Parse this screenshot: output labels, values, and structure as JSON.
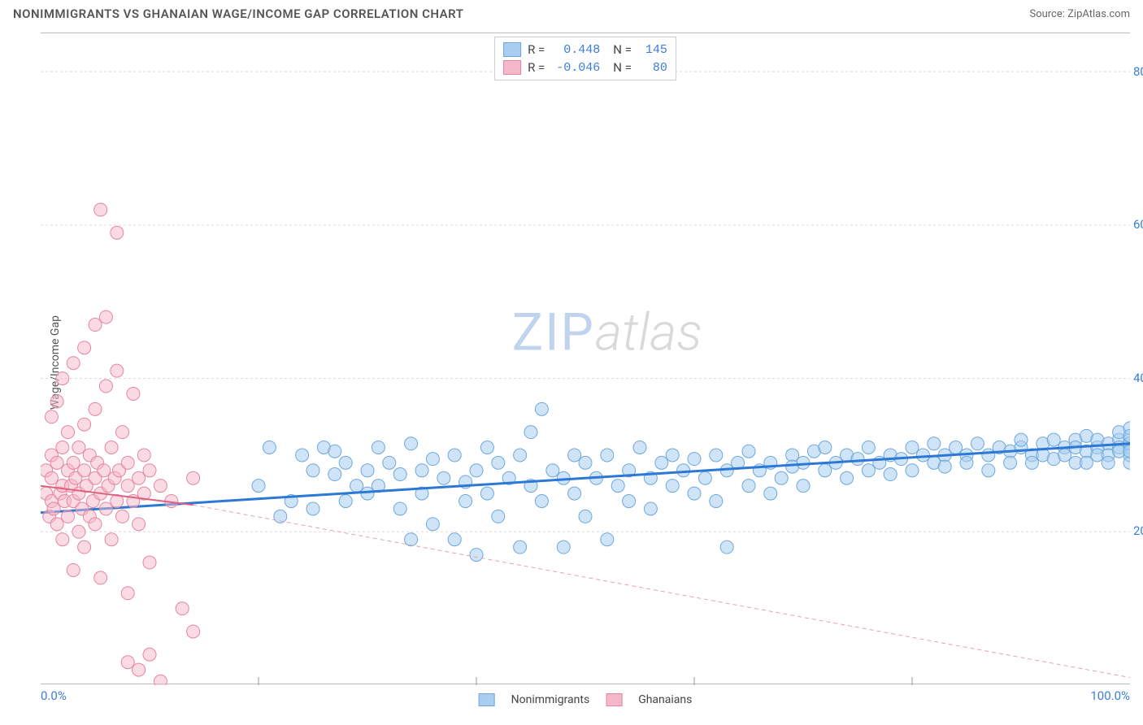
{
  "title": "NONIMMIGRANTS VS GHANAIAN WAGE/INCOME GAP CORRELATION CHART",
  "source": "Source: ZipAtlas.com",
  "ylabel": "Wage/Income Gap",
  "watermark": {
    "zip": "ZIP",
    "atlas": "atlas"
  },
  "chart": {
    "type": "scatter",
    "xlim": [
      0,
      100
    ],
    "ylim": [
      0,
      85
    ],
    "xtick_labels": [
      {
        "pos": 0,
        "label": "0.0%"
      },
      {
        "pos": 100,
        "label": "100.0%"
      }
    ],
    "xtick_marks": [
      20,
      40,
      60,
      80
    ],
    "ytick_labels": [
      {
        "pos": 20,
        "label": "20.0%"
      },
      {
        "pos": 40,
        "label": "40.0%"
      },
      {
        "pos": 60,
        "label": "60.0%"
      },
      {
        "pos": 80,
        "label": "80.0%"
      }
    ],
    "gridline_color": "#d9d9d9",
    "background": "#ffffff",
    "series": [
      {
        "name": "Nonimmigrants",
        "fill": "#a8cdf0",
        "stroke": "#6fa8dc",
        "marker_radius": 8,
        "fill_opacity": 0.55,
        "R": "0.448",
        "N": "145",
        "trend": {
          "color": "#2b78d6",
          "width": 3,
          "dash": "none",
          "x1": 0,
          "y1": 22.5,
          "x2": 100,
          "y2": 31.5
        },
        "points": [
          [
            20,
            26
          ],
          [
            21,
            31
          ],
          [
            22,
            22
          ],
          [
            23,
            24
          ],
          [
            24,
            30
          ],
          [
            25,
            28
          ],
          [
            25,
            23
          ],
          [
            26,
            31
          ],
          [
            27,
            27.5
          ],
          [
            27,
            30.5
          ],
          [
            28,
            29
          ],
          [
            28,
            24
          ],
          [
            29,
            26
          ],
          [
            30,
            28
          ],
          [
            30,
            25
          ],
          [
            31,
            31
          ],
          [
            31,
            26
          ],
          [
            32,
            29
          ],
          [
            33,
            23
          ],
          [
            33,
            27.5
          ],
          [
            34,
            31.5
          ],
          [
            34,
            19
          ],
          [
            35,
            28
          ],
          [
            35,
            25
          ],
          [
            36,
            21
          ],
          [
            36,
            29.5
          ],
          [
            37,
            27
          ],
          [
            38,
            19
          ],
          [
            38,
            30
          ],
          [
            39,
            24
          ],
          [
            39,
            26.5
          ],
          [
            40,
            17
          ],
          [
            40,
            28
          ],
          [
            41,
            25
          ],
          [
            41,
            31
          ],
          [
            42,
            29
          ],
          [
            42,
            22
          ],
          [
            43,
            27
          ],
          [
            44,
            18
          ],
          [
            44,
            30
          ],
          [
            45,
            33
          ],
          [
            45,
            26
          ],
          [
            46,
            36
          ],
          [
            46,
            24
          ],
          [
            47,
            28
          ],
          [
            48,
            18
          ],
          [
            48,
            27
          ],
          [
            49,
            30
          ],
          [
            49,
            25
          ],
          [
            50,
            29
          ],
          [
            50,
            22
          ],
          [
            51,
            27
          ],
          [
            52,
            19
          ],
          [
            52,
            30
          ],
          [
            53,
            26
          ],
          [
            54,
            28
          ],
          [
            54,
            24
          ],
          [
            55,
            31
          ],
          [
            56,
            27
          ],
          [
            56,
            23
          ],
          [
            57,
            29
          ],
          [
            58,
            26
          ],
          [
            58,
            30
          ],
          [
            59,
            28
          ],
          [
            60,
            25
          ],
          [
            60,
            29.5
          ],
          [
            61,
            27
          ],
          [
            62,
            30
          ],
          [
            62,
            24
          ],
          [
            63,
            28
          ],
          [
            63,
            18
          ],
          [
            64,
            29
          ],
          [
            65,
            26
          ],
          [
            65,
            30.5
          ],
          [
            66,
            28
          ],
          [
            67,
            29
          ],
          [
            67,
            25
          ],
          [
            68,
            27
          ],
          [
            69,
            30
          ],
          [
            69,
            28.5
          ],
          [
            70,
            26
          ],
          [
            70,
            29
          ],
          [
            71,
            30.5
          ],
          [
            72,
            28
          ],
          [
            72,
            31
          ],
          [
            73,
            29
          ],
          [
            74,
            27
          ],
          [
            74,
            30
          ],
          [
            75,
            29.5
          ],
          [
            76,
            28
          ],
          [
            76,
            31
          ],
          [
            77,
            29
          ],
          [
            78,
            30
          ],
          [
            78,
            27.5
          ],
          [
            79,
            29.5
          ],
          [
            80,
            31
          ],
          [
            80,
            28
          ],
          [
            81,
            30
          ],
          [
            82,
            29
          ],
          [
            82,
            31.5
          ],
          [
            83,
            30
          ],
          [
            83,
            28.5
          ],
          [
            84,
            31
          ],
          [
            85,
            30
          ],
          [
            85,
            29
          ],
          [
            86,
            31.5
          ],
          [
            87,
            30
          ],
          [
            87,
            28
          ],
          [
            88,
            31
          ],
          [
            89,
            30.5
          ],
          [
            89,
            29
          ],
          [
            90,
            31
          ],
          [
            90,
            32
          ],
          [
            91,
            30
          ],
          [
            91,
            29
          ],
          [
            92,
            31.5
          ],
          [
            92,
            30
          ],
          [
            93,
            32
          ],
          [
            93,
            29.5
          ],
          [
            94,
            31
          ],
          [
            94,
            30
          ],
          [
            95,
            32
          ],
          [
            95,
            29
          ],
          [
            95,
            31
          ],
          [
            96,
            30.5
          ],
          [
            96,
            32.5
          ],
          [
            96,
            29
          ],
          [
            97,
            31
          ],
          [
            97,
            30
          ],
          [
            97,
            32
          ],
          [
            98,
            31.5
          ],
          [
            98,
            30
          ],
          [
            98,
            29
          ],
          [
            99,
            32
          ],
          [
            99,
            31
          ],
          [
            99,
            30.5
          ],
          [
            99,
            33
          ],
          [
            100,
            31
          ],
          [
            100,
            32
          ],
          [
            100,
            30
          ],
          [
            100,
            33.5
          ],
          [
            100,
            29
          ],
          [
            100,
            31.5
          ],
          [
            100,
            32.5
          ],
          [
            100,
            30.5
          ]
        ]
      },
      {
        "name": "Ghanaians",
        "fill": "#f5b8c8",
        "stroke": "#e685a0",
        "marker_radius": 8,
        "fill_opacity": 0.5,
        "R": "-0.046",
        "N": "80",
        "trend": {
          "color": "#e06080",
          "width": 2,
          "dash": "none",
          "x1": 0,
          "y1": 26,
          "x2": 14,
          "y2": 23.5
        },
        "trend_ext": {
          "color": "#e8a0b0",
          "width": 1,
          "dash": "5,4",
          "x1": 14,
          "y1": 23.5,
          "x2": 100,
          "y2": 1
        },
        "points": [
          [
            0.5,
            25
          ],
          [
            0.5,
            28
          ],
          [
            0.8,
            22
          ],
          [
            1,
            30
          ],
          [
            1,
            24
          ],
          [
            1,
            35
          ],
          [
            1,
            27
          ],
          [
            1.2,
            23
          ],
          [
            1.5,
            29
          ],
          [
            1.5,
            21
          ],
          [
            1.5,
            37
          ],
          [
            1.8,
            25
          ],
          [
            2,
            31
          ],
          [
            2,
            19
          ],
          [
            2,
            26
          ],
          [
            2,
            40
          ],
          [
            2.2,
            24
          ],
          [
            2.5,
            28
          ],
          [
            2.5,
            22
          ],
          [
            2.5,
            33
          ],
          [
            2.8,
            26
          ],
          [
            3,
            15
          ],
          [
            3,
            29
          ],
          [
            3,
            24
          ],
          [
            3,
            42
          ],
          [
            3.2,
            27
          ],
          [
            3.5,
            20
          ],
          [
            3.5,
            31
          ],
          [
            3.5,
            25
          ],
          [
            3.8,
            23
          ],
          [
            4,
            34
          ],
          [
            4,
            18
          ],
          [
            4,
            28
          ],
          [
            4,
            44
          ],
          [
            4.2,
            26
          ],
          [
            4.5,
            22
          ],
          [
            4.5,
            30
          ],
          [
            4.8,
            24
          ],
          [
            5,
            36
          ],
          [
            5,
            47
          ],
          [
            5,
            27
          ],
          [
            5,
            21
          ],
          [
            5.2,
            29
          ],
          [
            5.5,
            25
          ],
          [
            5.5,
            14
          ],
          [
            5.5,
            62
          ],
          [
            5.8,
            28
          ],
          [
            6,
            23
          ],
          [
            6,
            39
          ],
          [
            6,
            48
          ],
          [
            6.2,
            26
          ],
          [
            6.5,
            31
          ],
          [
            6.5,
            19
          ],
          [
            6.8,
            27
          ],
          [
            7,
            24
          ],
          [
            7,
            59
          ],
          [
            7,
            41
          ],
          [
            7.2,
            28
          ],
          [
            7.5,
            22
          ],
          [
            7.5,
            33
          ],
          [
            8,
            12
          ],
          [
            8,
            26
          ],
          [
            8,
            29
          ],
          [
            8,
            3
          ],
          [
            8.5,
            24
          ],
          [
            8.5,
            38
          ],
          [
            9,
            27
          ],
          [
            9,
            21
          ],
          [
            9,
            2
          ],
          [
            9.5,
            25
          ],
          [
            9.5,
            30
          ],
          [
            10,
            28
          ],
          [
            10,
            16
          ],
          [
            10,
            4
          ],
          [
            11,
            26
          ],
          [
            11,
            0.5
          ],
          [
            12,
            24
          ],
          [
            13,
            10
          ],
          [
            14,
            27
          ],
          [
            14,
            7
          ]
        ]
      }
    ]
  },
  "legend_top": [
    {
      "swatch_fill": "#a8cdf0",
      "swatch_stroke": "#6fa8dc",
      "r_label": "R =",
      "r_val": "0.448",
      "n_label": "N =",
      "n_val": "145"
    },
    {
      "swatch_fill": "#f5b8c8",
      "swatch_stroke": "#e685a0",
      "r_label": "R =",
      "r_val": "-0.046",
      "n_label": "N =",
      "n_val": "80"
    }
  ],
  "legend_bottom": [
    {
      "swatch_fill": "#a8cdf0",
      "swatch_stroke": "#6fa8dc",
      "label": "Nonimmigrants"
    },
    {
      "swatch_fill": "#f5b8c8",
      "swatch_stroke": "#e685a0",
      "label": "Ghanaians"
    }
  ]
}
